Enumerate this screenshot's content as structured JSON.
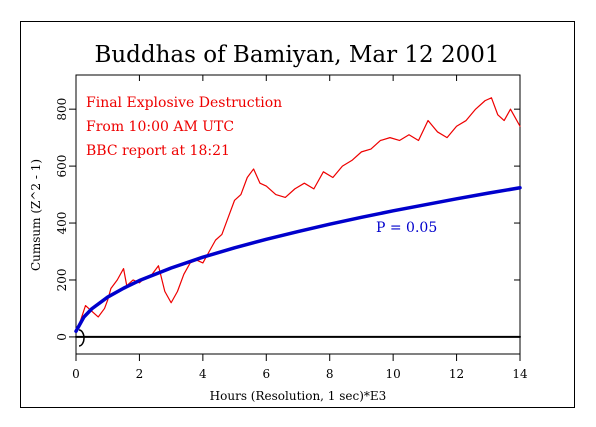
{
  "chart_data": {
    "type": "line",
    "title": "Buddhas of Bamiyan, Mar 12 2001",
    "xlabel": "Hours (Resolution, 1 sec)*E3",
    "ylabel": "Cumsum (Z^2 - 1)",
    "xlim": [
      0,
      14
    ],
    "ylim": [
      -60,
      920
    ],
    "x_ticks": [
      0,
      2,
      4,
      6,
      8,
      10,
      12,
      14
    ],
    "x_tick_labels": [
      "0",
      "2",
      "4",
      "6",
      "8",
      "10",
      "12",
      "14"
    ],
    "y_ticks": [
      0,
      200,
      400,
      600,
      800
    ],
    "y_tick_labels": [
      "0",
      "200",
      "400",
      "600",
      "800"
    ],
    "grid": false,
    "annotations": [
      "Final Explosive Destruction",
      "From 10:00 AM UTC",
      "BBC report at 18:21"
    ],
    "series": [
      {
        "color": "#ee0000",
        "x": [
          0,
          0.15,
          0.3,
          0.5,
          0.7,
          0.9,
          1.0,
          1.1,
          1.3,
          1.5,
          1.6,
          1.8,
          2.0,
          2.2,
          2.4,
          2.6,
          2.8,
          3.0,
          3.2,
          3.4,
          3.6,
          3.8,
          4.0,
          4.2,
          4.4,
          4.6,
          4.8,
          5.0,
          5.2,
          5.4,
          5.6,
          5.8,
          6.0,
          6.3,
          6.6,
          6.9,
          7.2,
          7.5,
          7.8,
          8.1,
          8.4,
          8.7,
          9.0,
          9.3,
          9.6,
          9.9,
          10.2,
          10.5,
          10.8,
          11.1,
          11.4,
          11.7,
          12.0,
          12.3,
          12.6,
          12.9,
          13.1,
          13.3,
          13.5,
          13.7,
          13.85,
          14.0
        ],
        "y": [
          20,
          60,
          110,
          90,
          70,
          100,
          130,
          170,
          200,
          240,
          180,
          200,
          190,
          210,
          220,
          250,
          160,
          120,
          160,
          220,
          260,
          270,
          260,
          300,
          340,
          360,
          420,
          480,
          500,
          560,
          590,
          540,
          530,
          500,
          490,
          520,
          540,
          520,
          580,
          560,
          600,
          620,
          650,
          660,
          690,
          700,
          690,
          710,
          690,
          760,
          720,
          700,
          740,
          760,
          800,
          830,
          840,
          780,
          760,
          800,
          770,
          740
        ]
      },
      {
        "name": "P = 0.05",
        "color": "#0000cc",
        "x": [
          0,
          0.25,
          0.5,
          1,
          1.5,
          2,
          3,
          4,
          5,
          6,
          7,
          8,
          9,
          10,
          11,
          12,
          13,
          14
        ],
        "y": [
          20,
          70,
          99,
          140,
          171,
          198,
          242,
          280,
          313,
          343,
          370,
          396,
          420,
          443,
          464,
          485,
          505,
          524
        ]
      },
      {
        "color": "#000000",
        "x": [
          0,
          14
        ],
        "y": [
          0,
          0
        ]
      }
    ]
  }
}
